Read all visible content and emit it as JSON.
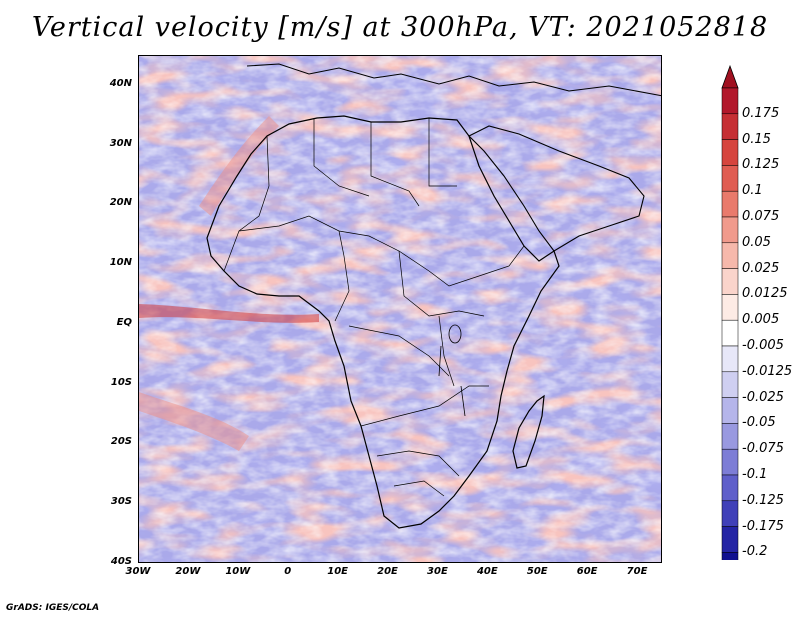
{
  "title": "Vertical velocity [m/s] at 300hPa, VT: 2021052818",
  "credit": "GrADS: IGES/COLA",
  "map": {
    "region": "Africa",
    "lon_range": [
      -30,
      75
    ],
    "lat_range": [
      -40,
      45
    ],
    "lat_labels": [
      "40N",
      "30N",
      "20N",
      "10N",
      "EQ",
      "10S",
      "20S",
      "30S",
      "40S"
    ],
    "lat_values": [
      40,
      30,
      20,
      10,
      0,
      -10,
      -20,
      -30,
      -40
    ],
    "lon_labels": [
      "30W",
      "20W",
      "10W",
      "0",
      "10E",
      "20E",
      "30E",
      "40E",
      "50E",
      "60E",
      "70E"
    ],
    "lon_values": [
      -30,
      -20,
      -10,
      0,
      10,
      20,
      30,
      40,
      50,
      60,
      70
    ]
  },
  "colorbar": {
    "labels": [
      "0.175",
      "0.15",
      "0.125",
      "0.1",
      "0.075",
      "0.05",
      "0.025",
      "0.0125",
      "0.005",
      "-0.005",
      "-0.0125",
      "-0.025",
      "-0.05",
      "-0.075",
      "-0.1",
      "-0.125",
      "-0.175",
      "-0.2"
    ],
    "colors": [
      "#b2182b",
      "#c62f34",
      "#d6453e",
      "#e05d52",
      "#e97a6c",
      "#f09a8c",
      "#f6b8ab",
      "#fad4cb",
      "#fdebe5",
      "#ffffff",
      "#e7e7f8",
      "#cfcff1",
      "#b5b5ea",
      "#9999e0",
      "#7d7dd6",
      "#5f5fca",
      "#4040b8",
      "#2424a4",
      "#10108f"
    ],
    "top_color": "#a01020",
    "bottom_color": "#0c0c80"
  }
}
